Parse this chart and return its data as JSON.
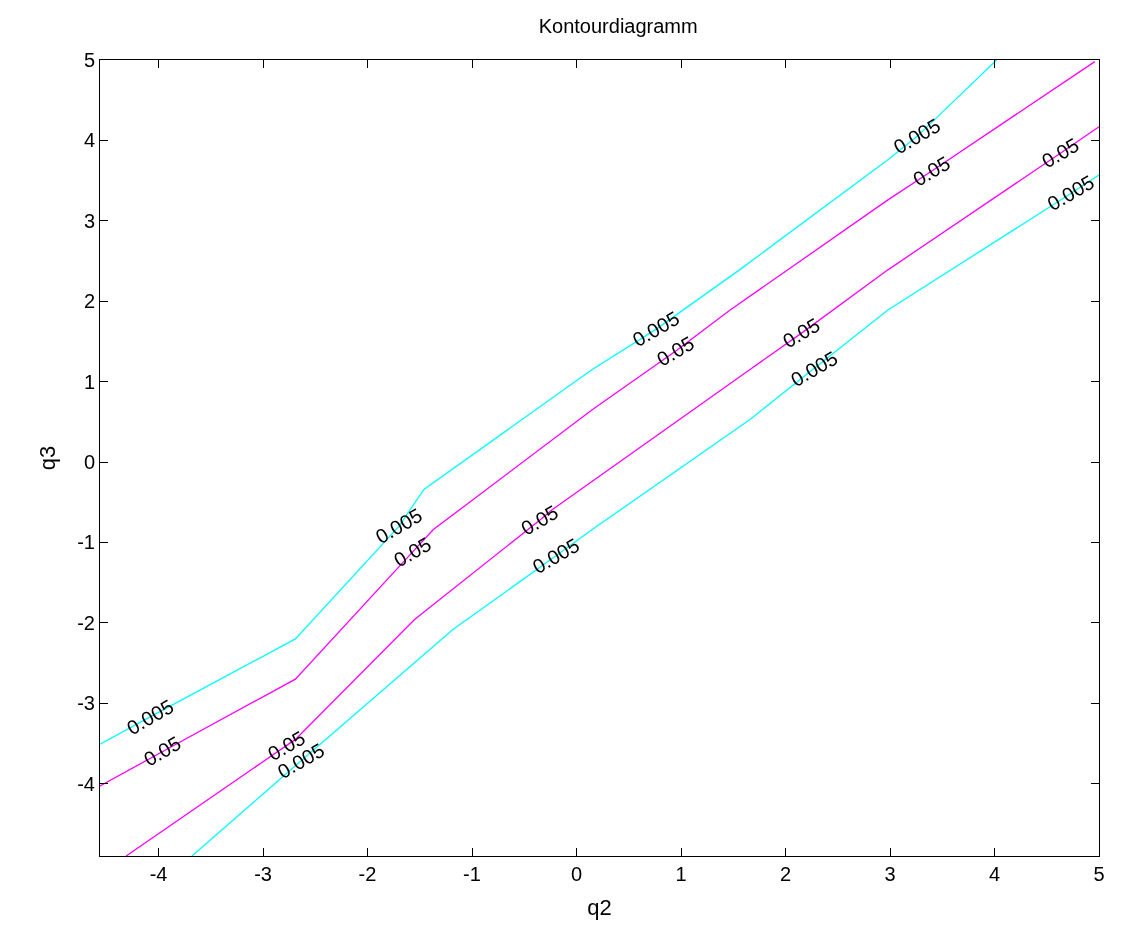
{
  "chart_data": {
    "type": "line",
    "title": "Kontourdiagramm",
    "xlabel": "q2",
    "ylabel": "q3",
    "xlim": [
      -4.56,
      5
    ],
    "ylim": [
      -4.9,
      5
    ],
    "xticks": [
      -4,
      -3,
      -2,
      -1,
      0,
      1,
      2,
      3,
      4,
      5
    ],
    "yticks": [
      -4,
      -3,
      -2,
      -1,
      0,
      1,
      2,
      3,
      4,
      5
    ],
    "marker": "none",
    "line_style": "solid",
    "series": [
      {
        "color": "#00ffff",
        "x": [
          -4.56,
          -4.08,
          -2.69,
          -1.7,
          -1.46,
          0.15,
          0.76,
          1.56,
          2.98,
          3.26,
          4.02
        ],
        "values": [
          -3.51,
          -3.17,
          -2.2,
          -0.8,
          -0.34,
          1.15,
          1.65,
          2.39,
          3.76,
          4.05,
          5.0
        ]
      },
      {
        "color": "#ff00ff",
        "x": [
          -4.56,
          -3.96,
          -2.69,
          -1.57,
          -1.37,
          0.15,
          0.95,
          1.47,
          2.98,
          3.4,
          4.96
        ],
        "values": [
          -4.03,
          -3.6,
          -2.7,
          -1.12,
          -0.84,
          0.65,
          1.38,
          1.89,
          3.26,
          3.62,
          4.98
        ]
      },
      {
        "color": "#ff00ff",
        "x": [
          -4.31,
          -2.78,
          -2.69,
          -1.55,
          -0.35,
          -0.23,
          1.66,
          2.15,
          2.98,
          4.63,
          5.0
        ],
        "values": [
          -4.9,
          -3.53,
          -3.45,
          -1.96,
          -0.72,
          -0.59,
          1.15,
          1.6,
          2.39,
          3.84,
          4.17
        ]
      },
      {
        "color": "#00ffff",
        "x": [
          -3.68,
          -2.64,
          -2.4,
          -1.18,
          -0.2,
          0.15,
          1.66,
          2.27,
          2.98,
          4.73,
          5.0
        ],
        "values": [
          -4.9,
          -3.72,
          -3.45,
          -2.08,
          -1.17,
          -0.84,
          0.53,
          1.16,
          1.89,
          3.34,
          3.57
        ]
      }
    ],
    "annotations": [
      {
        "text": "0.005",
        "x": 3.26,
        "y": 4.05
      },
      {
        "text": "0.05",
        "x": 3.4,
        "y": 3.62
      },
      {
        "text": "0.05",
        "x": 4.63,
        "y": 3.84
      },
      {
        "text": "0.005",
        "x": 4.73,
        "y": 3.34
      },
      {
        "text": "0.005",
        "x": 0.76,
        "y": 1.65
      },
      {
        "text": "0.05",
        "x": 0.95,
        "y": 1.38
      },
      {
        "text": "0.05",
        "x": 2.15,
        "y": 1.6
      },
      {
        "text": "0.005",
        "x": 2.27,
        "y": 1.16
      },
      {
        "text": "0.005",
        "x": -1.7,
        "y": -0.8
      },
      {
        "text": "0.05",
        "x": -1.57,
        "y": -1.12
      },
      {
        "text": "0.05",
        "x": -0.35,
        "y": -0.72
      },
      {
        "text": "0.005",
        "x": -0.2,
        "y": -1.17
      },
      {
        "text": "0.005",
        "x": -4.08,
        "y": -3.17
      },
      {
        "text": "0.05",
        "x": -3.96,
        "y": -3.6
      },
      {
        "text": "0.05",
        "x": -2.78,
        "y": -3.53
      },
      {
        "text": "0.005",
        "x": -2.64,
        "y": -3.72
      }
    ]
  }
}
